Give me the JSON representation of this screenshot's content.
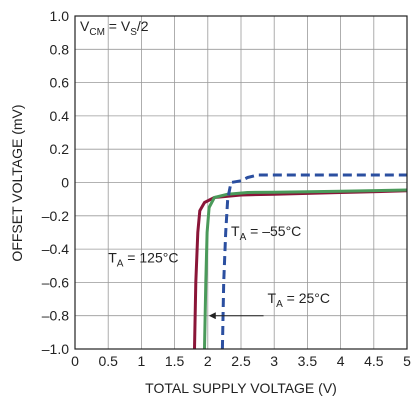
{
  "chart_data": {
    "type": "line",
    "title": "",
    "xlabel": "TOTAL SUPPLY VOLTAGE (V)",
    "ylabel": "OFFSET VOLTAGE (mV)",
    "xlim": [
      0,
      5
    ],
    "ylim": [
      -1.0,
      1.0
    ],
    "x_ticks": [
      0,
      0.5,
      1,
      1.5,
      2,
      2.5,
      3,
      3.5,
      4,
      4.5,
      5
    ],
    "x_tick_labels": [
      "0",
      "0.5",
      "1",
      "1.5",
      "2",
      "2.5",
      "3",
      "3.5",
      "4",
      "4.5",
      "5"
    ],
    "y_ticks": [
      1.0,
      0.8,
      0.6,
      0.4,
      0.2,
      0,
      -0.2,
      -0.4,
      -0.6,
      -0.8,
      -1.0
    ],
    "y_tick_labels": [
      "1.0",
      "0.8",
      "0.6",
      "0.4",
      "0.2",
      "0",
      "–0.2",
      "–0.4",
      "–0.6",
      "–0.8",
      "–1.0"
    ],
    "grid": true,
    "condition": {
      "main": "V",
      "sub": "CM",
      "mid": " = V",
      "sub2": "S",
      "tail": "/2"
    },
    "series": [
      {
        "name": "125°C",
        "color": "#8a1538",
        "dash": "solid",
        "points": [
          [
            1.8,
            -1.0
          ],
          [
            1.82,
            -0.6
          ],
          [
            1.85,
            -0.3
          ],
          [
            1.88,
            -0.17
          ],
          [
            1.95,
            -0.12
          ],
          [
            2.1,
            -0.09
          ],
          [
            2.5,
            -0.075
          ],
          [
            3.0,
            -0.07
          ],
          [
            4.0,
            -0.06
          ],
          [
            5.0,
            -0.05
          ]
        ]
      },
      {
        "name": "25°C",
        "color": "#4a9a5a",
        "dash": "solid",
        "points": [
          [
            1.95,
            -1.0
          ],
          [
            1.97,
            -0.6
          ],
          [
            1.99,
            -0.3
          ],
          [
            2.02,
            -0.15
          ],
          [
            2.1,
            -0.09
          ],
          [
            2.3,
            -0.07
          ],
          [
            2.6,
            -0.06
          ],
          [
            3.0,
            -0.058
          ],
          [
            4.0,
            -0.052
          ],
          [
            5.0,
            -0.045
          ]
        ]
      },
      {
        "name": "–55°C",
        "color": "#2b4fa0",
        "dash": "dashed",
        "points": [
          [
            2.22,
            -1.0
          ],
          [
            2.24,
            -0.6
          ],
          [
            2.27,
            -0.3
          ],
          [
            2.3,
            -0.1
          ],
          [
            2.35,
            0.0
          ],
          [
            2.5,
            0.01
          ],
          [
            2.6,
            0.03
          ],
          [
            2.75,
            0.045
          ],
          [
            3.5,
            0.045
          ],
          [
            5.0,
            0.045
          ]
        ]
      }
    ],
    "annotations": [
      {
        "main": "T",
        "sub": "A",
        "text": " = 125°C",
        "x": 0.5,
        "y": -0.48
      },
      {
        "main": "T",
        "sub": "A",
        "text": " = 25°C",
        "x": 2.9,
        "y": -0.725
      },
      {
        "main": "T",
        "sub": "A",
        "text": " = –55°C",
        "x": 2.35,
        "y": -0.32
      }
    ]
  }
}
